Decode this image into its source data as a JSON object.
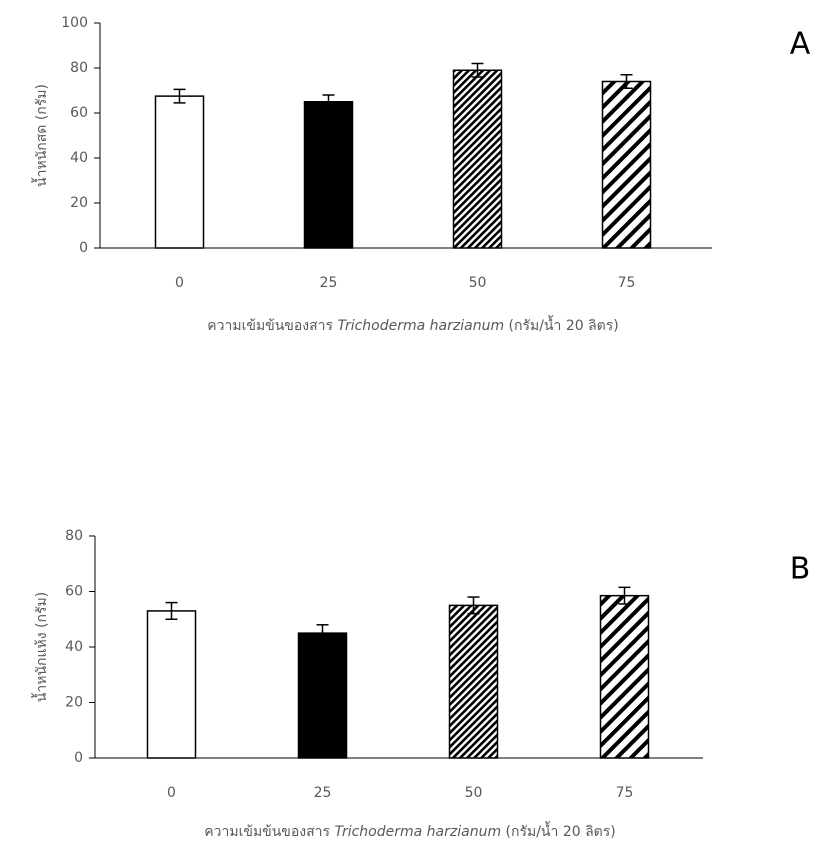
{
  "chart_data": [
    {
      "type": "bar",
      "panel": "A",
      "ylabel": "น้ำหนักสด (กรัม)",
      "xlabel_parts": [
        "ความเข้มข้นของสาร ",
        "Trichoderma harzianum",
        " (กรัม/น้ำ 20 ลิตร)"
      ],
      "categories": [
        "0",
        "25",
        "50",
        "75"
      ],
      "values": [
        67.5,
        65,
        79,
        74
      ],
      "errors": [
        3,
        3,
        3,
        3
      ],
      "ylim": [
        0,
        100
      ],
      "yticks": [
        0,
        20,
        40,
        60,
        80,
        100
      ]
    },
    {
      "type": "bar",
      "panel": "B",
      "ylabel": "น้ำหนักแห้ง (กรัม)",
      "xlabel_parts": [
        "ความเข้มข้นของสาร ",
        "Trichoderma harzianum",
        " (กรัม/น้ำ 20 ลิตร)"
      ],
      "categories": [
        "0",
        "25",
        "50",
        "75"
      ],
      "values": [
        53,
        45,
        55,
        58.5
      ],
      "errors": [
        3,
        3,
        3,
        3
      ],
      "ylim": [
        0,
        80
      ],
      "yticks": [
        0,
        20,
        40,
        60,
        80
      ]
    }
  ]
}
